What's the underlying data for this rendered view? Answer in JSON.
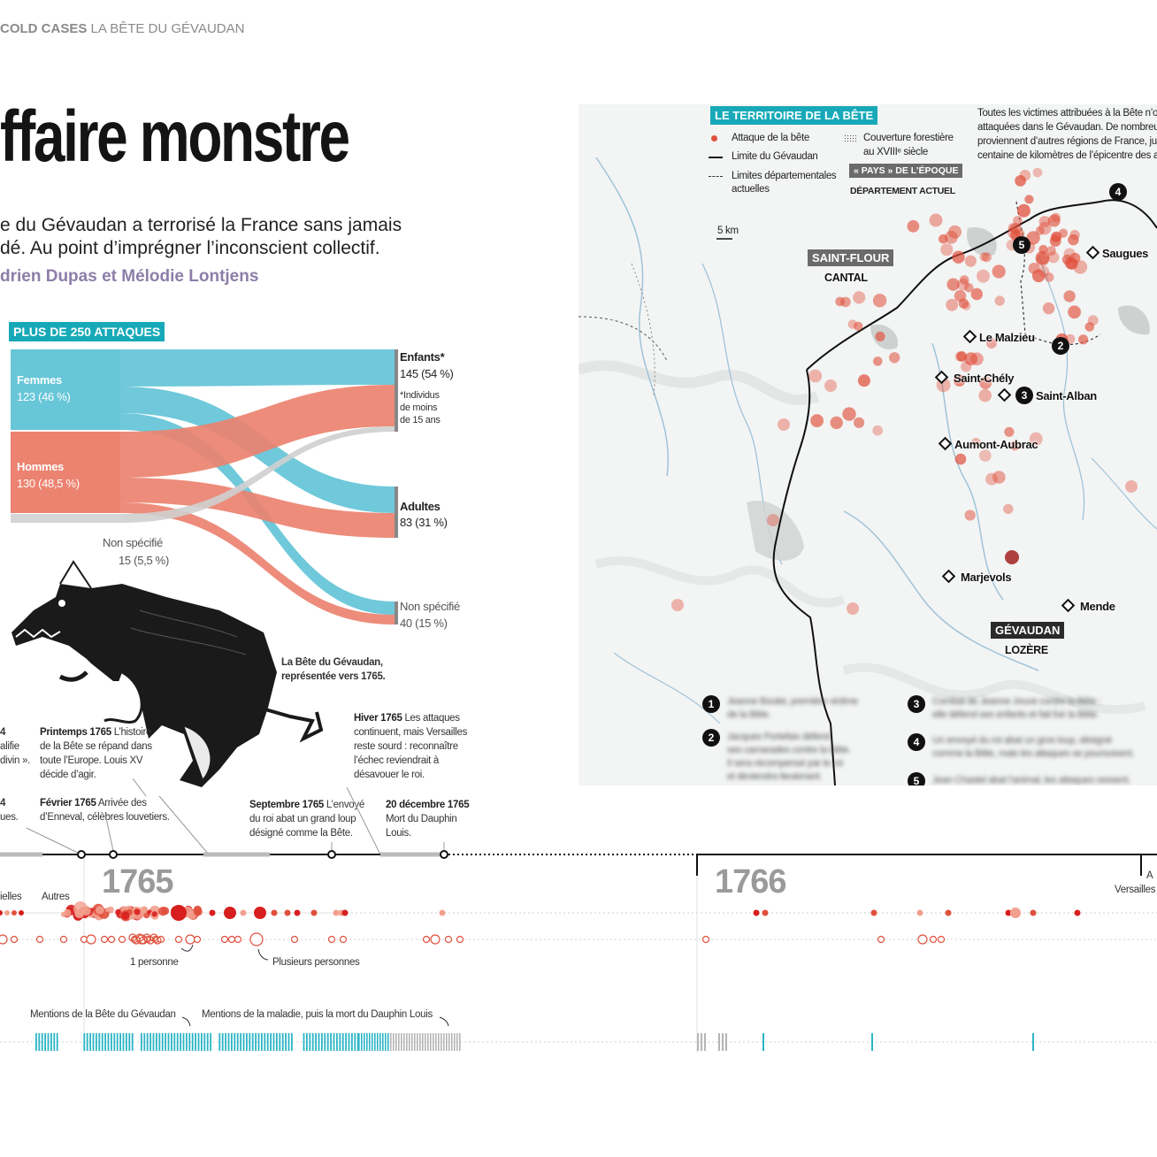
{
  "header": {
    "section": "COLD CASES",
    "subsection": "LA BÊTE DU GÉVAUDAN",
    "title": "ffaire monstre",
    "dek_line1": "e du Gévaudan a terrorisé la France sans jamais",
    "dek_line2": "dé. Au point d’imprégner l’inconscient collectif.",
    "byline": "drien Dupas et Mélodie Lontjens"
  },
  "sankey": {
    "tag": "PLUS DE 250 ATTAQUES",
    "femmes_label": "Femmes",
    "femmes_value": "123 (46 %)",
    "hommes_label": "Hommes",
    "hommes_value": "130 (48,5 %)",
    "nonspec_left_label": "Non spécifié",
    "nonspec_left_value": "15 (5,5 %)",
    "enfants_label": "Enfants*",
    "enfants_value": "145 (54 %)",
    "enfants_note": [
      "*Individus",
      "de moins",
      "de 15 ans"
    ],
    "adultes_label": "Adultes",
    "adultes_value": "83 (31 %)",
    "nonspec_right_label": "Non spécifié",
    "nonspec_right_value": "40 (15 %)",
    "colors": {
      "femmes": "#67c6d8",
      "hommes": "#ec8270",
      "grey": "#d6d6d6"
    }
  },
  "illustration": {
    "caption_line1": "La Bête du Gévaudan,",
    "caption_line2": "représentée vers 1765."
  },
  "events": {
    "e_left1": [
      "4",
      "alifie",
      "divin »."
    ],
    "e_left2": [
      "4",
      "ues."
    ],
    "printemps": {
      "date": "Printemps 1765",
      "lines": [
        "L’histoire",
        "de la Bête se répand dans",
        "toute l’Europe. Louis XV",
        "décide d’agir."
      ]
    },
    "fevrier": {
      "date": "Février 1765",
      "lines": [
        "Arrivée des",
        "d’Enneval, célèbres louvetiers."
      ]
    },
    "septembre": {
      "date": "Septembre 1765",
      "lines": [
        "L’envoyé",
        "du roi abat un grand loup",
        "désigné comme la Bête."
      ]
    },
    "hiver": {
      "date": "Hiver 1765",
      "lines": [
        "Les attaques",
        "continuent, mais Versailles",
        "reste sourd : reconnaître",
        "l’échec reviendrait à",
        "désavouer le roi."
      ]
    },
    "decembre": {
      "date": "20 décembre 1765",
      "lines": [
        "Mort du Dauphin",
        "Louis."
      ]
    }
  },
  "timeline": {
    "year1": "1765",
    "year2": "1766",
    "right_a": "A",
    "right_versailles": "Versailles",
    "row_label_left": "ielles",
    "row_label_autres": "Autres",
    "one_person": "1 personne",
    "several_persons": "Plusieurs personnes",
    "mentions_bete": "Mentions de la Bête du Gévaudan",
    "mentions_maladie": "Mentions de la maladie, puis la mort du Dauphin Louis"
  },
  "map": {
    "tag": "LE TERRITOIRE DE LA BÊTE",
    "legend_attack": "Attaque de la bête",
    "legend_limit": "Limite du Gévaudan",
    "legend_dept_line1": "Limites départementales",
    "legend_dept_line2": "actuelles",
    "legend_forest_line1": "Couverture forestière",
    "legend_forest_line2": "au XVIIIᵉ siècle",
    "legend_pays": "« PAYS » DE L’ÉPOQUE",
    "legend_dept": "DÉPARTEMENT ACTUEL",
    "note": [
      "Toutes les victimes attribuées à la Bête n’or",
      "attaquées dans le Gévaudan. De nombreux",
      "proviennent d’autres régions de France, jus",
      "centaine de kilomètres de l’épicentre des at"
    ],
    "scale": "5 km",
    "pays1": "SAINT-FLOUR",
    "dept1": "CANTAL",
    "pays2": "GÉVAUDAN",
    "dept2": "LOZÈRE",
    "places": {
      "saugues": "Saugues",
      "lemalzieu": "Le Malzieu",
      "saintchely": "Saint-Chély",
      "saintalban": "Saint-Alban",
      "aumont": "Aumont-Aubrac",
      "marjevols": "Marjevols",
      "mende": "Mende"
    },
    "numbers": [
      "1",
      "2",
      "3",
      "4",
      "5"
    ],
    "notes_blurred": {
      "n1": [
        "Jeanne Boulet, première victime",
        "de la Bête."
      ],
      "n2": [
        "Jacques Portefaix défend",
        "ses camarades contre la Bête.",
        "Il sera récompensé par le roi",
        "et deviendra lieutenant."
      ],
      "n3": [
        "Combat de Jeanne Jouve contre la Bête :",
        "elle défend ses enfants et fait fuir la Bête."
      ],
      "n4": [
        "Un envoyé du roi abat un gros loup, désigné",
        "comme la Bête, mais les attaques se poursuivent."
      ],
      "n5": [
        "Jean Chastel abat l’animal, les attaques cessent."
      ]
    },
    "colors": {
      "attack": "#e0503c",
      "water": "#9fc3d8",
      "tag": "#17a9b8"
    }
  }
}
